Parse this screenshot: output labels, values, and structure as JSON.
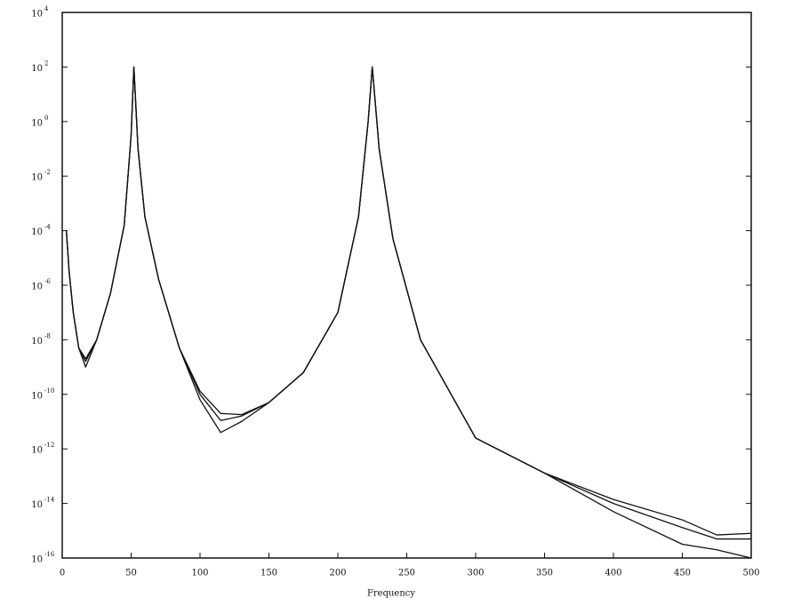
{
  "chart_data": {
    "type": "line",
    "x_label": "Frequency",
    "log_y": true,
    "x": [
      3,
      5,
      8,
      12,
      17,
      25,
      35,
      45,
      50,
      52,
      55,
      60,
      70,
      85,
      100,
      115,
      130,
      150,
      175,
      200,
      215,
      222,
      225,
      230,
      240,
      260,
      300,
      350,
      400,
      450,
      475,
      500
    ],
    "series": [
      {
        "color": "#111111",
        "values": [
          0.0001,
          3.2e-06,
          1e-07,
          5e-09,
          1.6e-09,
          1e-08,
          5e-07,
          0.00016,
          0.32,
          100,
          0.1,
          0.00032,
          1.6e-06,
          5e-09,
          1.3e-10,
          2e-11,
          1.8e-11,
          5e-11,
          6.3e-10,
          1e-07,
          0.00032,
          1,
          100,
          0.1,
          5e-05,
          1e-08,
          2.5e-12,
          1.3e-13,
          1e-14,
          1.3e-15,
          5e-16,
          5e-16
        ]
      },
      {
        "color": "#111111",
        "values": [
          0.0001,
          3.2e-06,
          1e-07,
          5e-09,
          2e-09,
          1e-08,
          5e-07,
          0.00016,
          0.32,
          100,
          0.1,
          0.00032,
          1.6e-06,
          5e-09,
          1e-10,
          1.1e-11,
          1.6e-11,
          5e-11,
          6.3e-10,
          1e-07,
          0.00032,
          1,
          100,
          0.1,
          5e-05,
          1e-08,
          2.5e-12,
          1.3e-13,
          1.4e-14,
          2.5e-15,
          7e-16,
          8e-16
        ]
      },
      {
        "color": "#111111",
        "values": [
          0.0001,
          3.2e-06,
          1e-07,
          5e-09,
          1e-09,
          1e-08,
          5e-07,
          0.00016,
          0.32,
          100,
          0.1,
          0.00032,
          1.6e-06,
          5e-09,
          6.3e-11,
          4e-12,
          1e-11,
          5e-11,
          6.3e-10,
          1e-07,
          0.00032,
          1,
          100,
          0.1,
          5e-05,
          1e-08,
          2.5e-12,
          1.3e-13,
          5e-15,
          3.2e-16,
          2e-16,
          1e-16
        ]
      }
    ],
    "xlim": [
      0,
      500
    ],
    "xticks": [
      0,
      50,
      100,
      150,
      200,
      250,
      300,
      350,
      400,
      450,
      500
    ],
    "ylim": [
      1e-16,
      10000.0
    ],
    "yticks": [
      {
        "value": 1e-16,
        "label": "10",
        "exponent": "-16"
      },
      {
        "value": 1e-14,
        "label": "10",
        "exponent": "-14"
      },
      {
        "value": 1e-12,
        "label": "10",
        "exponent": "-12"
      },
      {
        "value": 1e-10,
        "label": "10",
        "exponent": "-10"
      },
      {
        "value": 1e-08,
        "label": "10",
        "exponent": "-8"
      },
      {
        "value": 1e-06,
        "label": "10",
        "exponent": "-6"
      },
      {
        "value": 0.0001,
        "label": "10",
        "exponent": "-4"
      },
      {
        "value": 0.01,
        "label": "10",
        "exponent": "-2"
      },
      {
        "value": 1,
        "label": "10",
        "exponent": "0"
      },
      {
        "value": 100,
        "label": "10",
        "exponent": "2"
      },
      {
        "value": 10000,
        "label": "10",
        "exponent": "4"
      }
    ]
  }
}
